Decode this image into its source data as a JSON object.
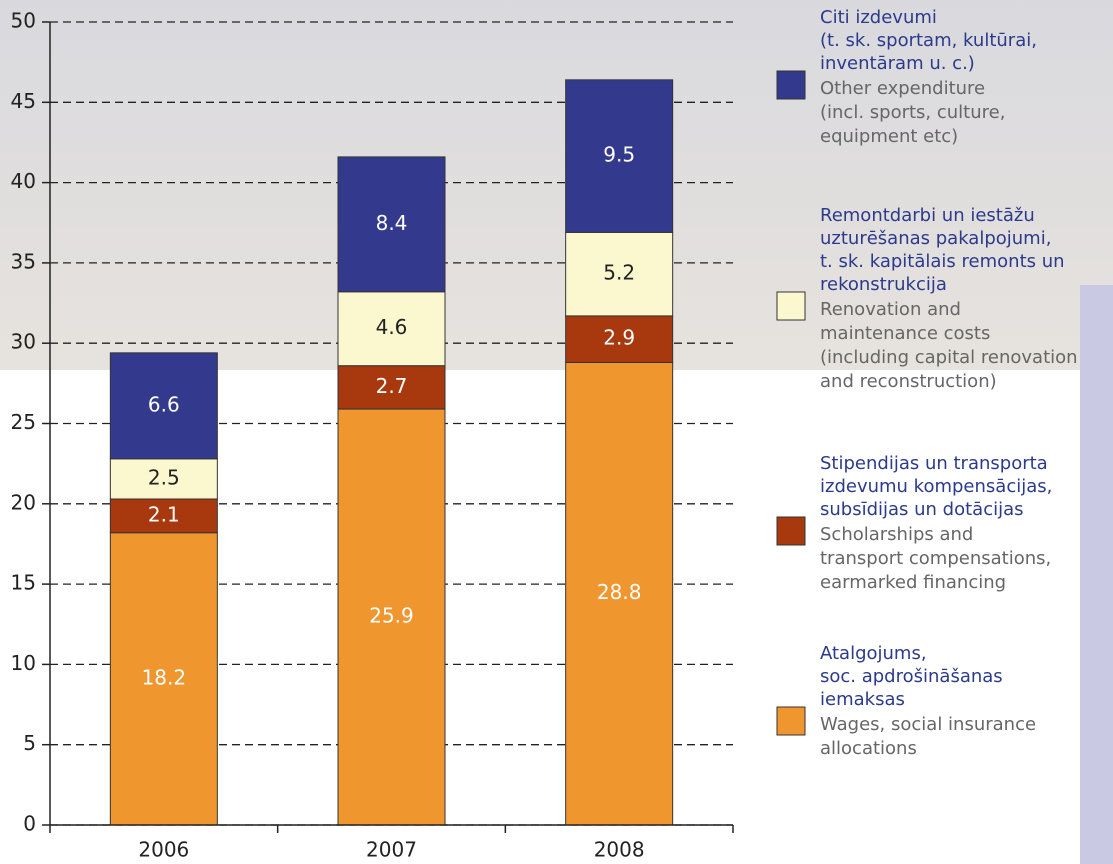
{
  "chart_data": {
    "type": "stacked_bar",
    "categories": [
      "2006",
      "2007",
      "2008"
    ],
    "series": [
      {
        "name": [
          "Atalgojums,",
          "soc. apdrošināšanas",
          "iemaksas"
        ],
        "description": [
          "Wages, social insurance",
          "allocations"
        ],
        "color": "#f0962e",
        "values": [
          18.2,
          25.9,
          28.8
        ]
      },
      {
        "name": [
          "Stipendijas un transporta",
          "izdevumu kompensācijas,",
          "subsīdijas un dotācijas"
        ],
        "description": [
          "Scholarships and",
          "transport compensations,",
          "earmarked financing"
        ],
        "color": "#a8390f",
        "values": [
          2.1,
          2.7,
          2.9
        ]
      },
      {
        "name": [
          "Remontdarbi un iestāžu",
          "uzturēšanas pakalpojumi,",
          "t. sk. kapitālais remonts un",
          "rekonstrukcija"
        ],
        "description": [
          "Renovation and",
          "maintenance costs",
          "(including capital renovation",
          "and reconstruction)"
        ],
        "color": "#fbf8cf",
        "values": [
          2.5,
          4.6,
          5.2
        ]
      },
      {
        "name": [
          "Citi izdevumi",
          "(t. sk. sportam, kultūrai,",
          "inventāram u. c.)"
        ],
        "description": [
          "Other expenditure",
          "(incl. sports, culture,",
          "equipment etc)"
        ],
        "color": "#333a8e",
        "values": [
          6.6,
          8.4,
          9.5
        ]
      }
    ],
    "ylim": [
      0,
      50
    ],
    "yticks": [
      0,
      5,
      10,
      15,
      20,
      25,
      30,
      35,
      40,
      45,
      50
    ],
    "grid": true,
    "legend": "right"
  }
}
